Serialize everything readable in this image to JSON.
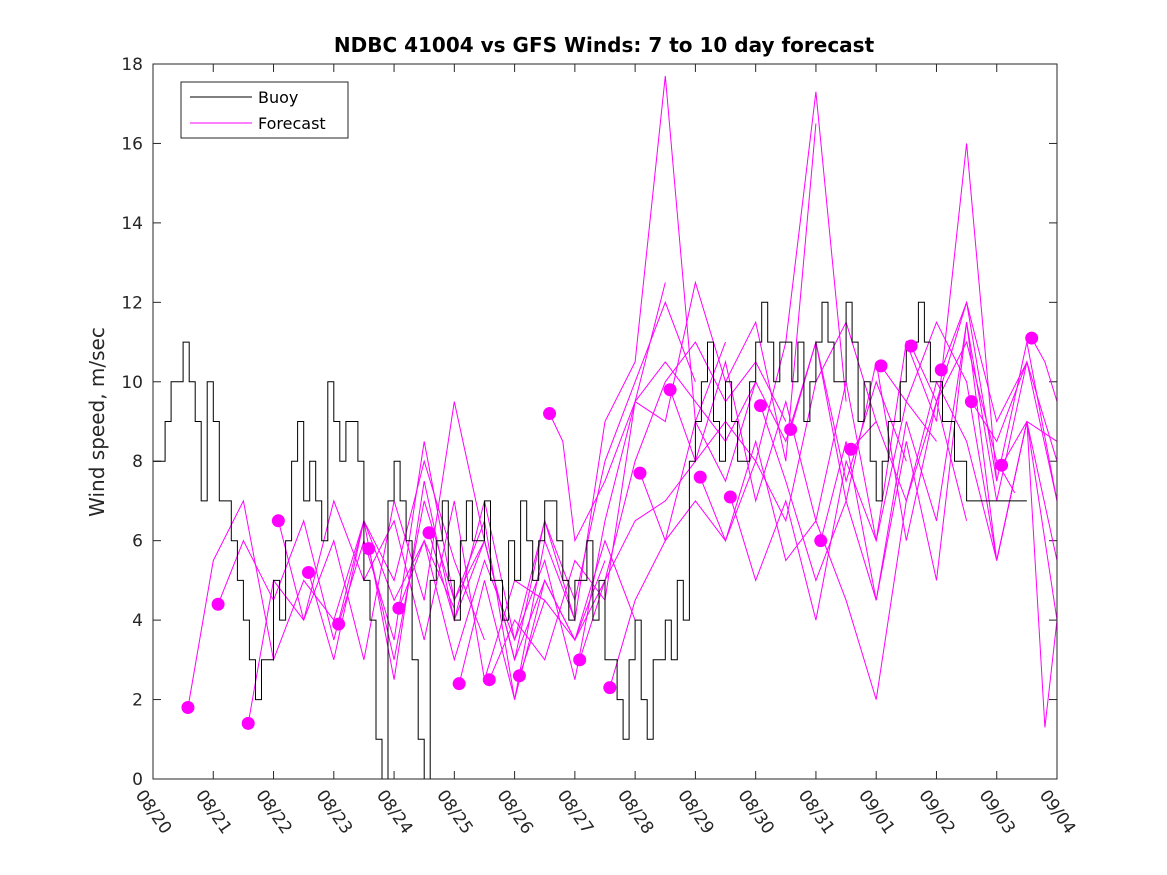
{
  "chart_data": {
    "type": "line",
    "title": "NDBC 41004 vs GFS Winds: 7 to 10 day forecast",
    "xlabel": "",
    "ylabel": "Wind speed, m/sec",
    "xlim": [
      0,
      15
    ],
    "ylim": [
      0,
      18
    ],
    "x_tick_labels": [
      "08/20",
      "08/21",
      "08/22",
      "08/23",
      "08/24",
      "08/25",
      "08/26",
      "08/27",
      "08/28",
      "08/29",
      "08/30",
      "08/31",
      "09/01",
      "09/02",
      "09/03",
      "09/04"
    ],
    "y_ticks": [
      0,
      2,
      4,
      6,
      8,
      10,
      12,
      14,
      16,
      18
    ],
    "legend": [
      "Buoy",
      "Forecast"
    ],
    "legend_position": "top-left",
    "colors": {
      "buoy": "#000000",
      "forecast": "#ff00ff"
    },
    "buoy": {
      "name": "Buoy",
      "x": [
        0,
        0.1,
        0.2,
        0.3,
        0.4,
        0.5,
        0.6,
        0.7,
        0.8,
        0.9,
        1.0,
        1.1,
        1.2,
        1.3,
        1.4,
        1.5,
        1.6,
        1.7,
        1.8,
        1.9,
        2.0,
        2.1,
        2.2,
        2.3,
        2.4,
        2.5,
        2.6,
        2.7,
        2.8,
        2.9,
        3.0,
        3.1,
        3.2,
        3.3,
        3.4,
        3.5,
        3.6,
        3.7,
        3.8,
        3.9,
        4.0,
        4.1,
        4.2,
        4.3,
        4.4,
        4.5,
        4.6,
        4.7,
        4.8,
        4.9,
        5.0,
        5.1,
        5.2,
        5.3,
        5.4,
        5.5,
        5.6,
        5.7,
        5.8,
        5.9,
        6.0,
        6.1,
        6.2,
        6.3,
        6.4,
        6.5,
        6.6,
        6.7,
        6.8,
        6.9,
        7.0,
        7.1,
        7.2,
        7.3,
        7.4,
        7.5,
        7.6,
        7.7,
        7.8,
        7.9,
        8.0,
        8.1,
        8.2,
        8.3,
        8.4,
        8.5,
        8.6,
        8.7,
        8.8,
        8.9,
        9.0,
        9.1,
        9.2,
        9.3,
        9.4,
        9.5,
        9.6,
        9.7,
        9.8,
        9.9,
        10.0,
        10.1,
        10.2,
        10.3,
        10.4,
        10.5,
        10.6,
        10.7,
        10.8,
        10.9,
        11.0,
        11.1,
        11.2,
        11.3,
        11.4,
        11.5,
        11.6,
        11.7,
        11.8,
        11.9,
        12.0,
        12.1,
        12.2,
        12.3,
        12.4,
        12.5,
        12.6,
        12.7,
        12.8,
        12.9,
        13.0,
        13.1,
        13.2,
        13.3,
        13.4,
        13.5,
        13.6,
        13.7,
        13.8,
        13.9,
        14.0,
        14.1,
        14.2,
        14.3,
        14.4,
        14.5
      ],
      "values": [
        7,
        8,
        8,
        9,
        10,
        10,
        11,
        10,
        9,
        7,
        10,
        9,
        7,
        7,
        6,
        5,
        4,
        3,
        2,
        3,
        3,
        5,
        4,
        6,
        8,
        9,
        7,
        8,
        7,
        6,
        10,
        9,
        8,
        9,
        9,
        8,
        5,
        4,
        1,
        0,
        7,
        8,
        7,
        6,
        3,
        1,
        0,
        5,
        6,
        7,
        5,
        4,
        6,
        7,
        6,
        6,
        7,
        5,
        5,
        4,
        6,
        5,
        7,
        6,
        5,
        6,
        7,
        7,
        6,
        5,
        4,
        5,
        5,
        6,
        4,
        5,
        3,
        3,
        2,
        1,
        3,
        4,
        2,
        1,
        3,
        3,
        4,
        3,
        5,
        4,
        8,
        9,
        10,
        11,
        9,
        8,
        10,
        9,
        8,
        8,
        10,
        11,
        12,
        11,
        10,
        11,
        11,
        10,
        11,
        9,
        10,
        11,
        12,
        11,
        10,
        10,
        12,
        11,
        9,
        10,
        8,
        7,
        8,
        9,
        9,
        10,
        11,
        11,
        12,
        11,
        10,
        10,
        9,
        9,
        8,
        8,
        7,
        7,
        7,
        7,
        7,
        7,
        7,
        7,
        7,
        7
      ]
    },
    "forecast_runs": [
      {
        "x": [
          0.58,
          1.0,
          1.5,
          2.0,
          2.5,
          3.0,
          3.5,
          4.0,
          4.5,
          5.0
        ],
        "values": [
          1.8,
          5.5,
          7.0,
          3.0,
          5.0,
          4.0,
          6.5,
          4.5,
          6.0,
          4.3
        ]
      },
      {
        "x": [
          1.08,
          1.5,
          2.0,
          2.5,
          3.0,
          3.5,
          4.0,
          4.5,
          5.0,
          5.5
        ],
        "values": [
          4.4,
          6.0,
          4.5,
          6.5,
          3.5,
          6.5,
          5.0,
          8.0,
          5.5,
          3.5
        ]
      },
      {
        "x": [
          1.58,
          2.0,
          2.5,
          3.0,
          3.5,
          4.0,
          4.5,
          5.0,
          5.5,
          6.0
        ],
        "values": [
          1.4,
          5.0,
          4.0,
          6.0,
          3.0,
          7.0,
          4.5,
          9.5,
          6.0,
          3.0
        ]
      },
      {
        "x": [
          2.08,
          2.5,
          3.0,
          3.5,
          4.0,
          4.5,
          5.0,
          5.5,
          6.0,
          6.5
        ],
        "values": [
          6.5,
          4.0,
          7.0,
          5.0,
          6.5,
          3.5,
          7.0,
          2.5,
          5.0,
          4.5
        ]
      },
      {
        "x": [
          2.58,
          3.0,
          3.5,
          4.0,
          4.5,
          5.0,
          5.5,
          6.0,
          6.5,
          7.0
        ],
        "values": [
          5.2,
          3.0,
          6.5,
          2.5,
          7.5,
          4.0,
          6.0,
          3.0,
          6.5,
          4.0
        ]
      },
      {
        "x": [
          3.08,
          3.5,
          4.0,
          4.5,
          5.0,
          5.5,
          6.0,
          6.5,
          7.0,
          7.5
        ],
        "values": [
          3.9,
          6.0,
          3.5,
          8.5,
          4.5,
          6.5,
          2.0,
          5.0,
          3.5,
          5.5
        ]
      },
      {
        "x": [
          3.58,
          4.0,
          4.5,
          5.0,
          5.5,
          6.0,
          6.5,
          7.0,
          7.5,
          8.0
        ],
        "values": [
          5.8,
          3.0,
          7.0,
          4.5,
          6.0,
          3.0,
          5.0,
          3.5,
          6.0,
          4.0
        ]
      },
      {
        "x": [
          4.08,
          4.5,
          5.0,
          5.5,
          6.0,
          6.5,
          7.0,
          7.5,
          8.0,
          8.5
        ],
        "values": [
          4.3,
          6.0,
          3.0,
          5.5,
          3.5,
          5.5,
          2.5,
          6.5,
          9.5,
          12.5
        ]
      },
      {
        "x": [
          4.58,
          5.0,
          5.5,
          6.0,
          6.5,
          7.0,
          7.5,
          8.0,
          8.5,
          9.0
        ],
        "values": [
          6.2,
          4.0,
          7.0,
          3.5,
          6.5,
          4.5,
          8.0,
          10.0,
          12.0,
          10.0
        ]
      },
      {
        "x": [
          5.08,
          5.5,
          6.0,
          6.5,
          7.0,
          7.5,
          8.0,
          8.5,
          9.0,
          9.5
        ],
        "values": [
          2.4,
          5.0,
          2.0,
          6.0,
          4.0,
          9.0,
          10.5,
          17.7,
          9.0,
          11.0
        ]
      },
      {
        "x": [
          5.58,
          6.0,
          6.5,
          7.0,
          7.5,
          8.0,
          8.5,
          9.0,
          9.5,
          10.0
        ],
        "values": [
          2.5,
          4.0,
          3.0,
          5.5,
          4.5,
          9.5,
          10.5,
          9.5,
          8.5,
          10.0
        ]
      },
      {
        "x": [
          6.08,
          6.5,
          7.0,
          7.5,
          8.0,
          8.5,
          9.0,
          9.5,
          10.0,
          10.5
        ],
        "values": [
          2.6,
          4.5,
          3.5,
          5.0,
          8.0,
          10.0,
          11.0,
          9.5,
          10.5,
          9.0
        ]
      },
      {
        "x": [
          6.58,
          6.8,
          7.0,
          7.5,
          8.0,
          8.5,
          9.0,
          9.5,
          10.0,
          10.5,
          11.0
        ],
        "values": [
          9.2,
          8.5,
          6.0,
          7.5,
          9.5,
          9.0,
          12.5,
          10.0,
          11.5,
          8.0,
          16.5
        ]
      },
      {
        "x": [
          7.08,
          7.5,
          8.0,
          8.5,
          9.0,
          9.5,
          10.0,
          10.5,
          11.0,
          11.5
        ],
        "values": [
          3.0,
          5.0,
          6.5,
          7.0,
          8.0,
          9.0,
          8.0,
          11.0,
          17.3,
          9.5
        ]
      },
      {
        "x": [
          7.58,
          8.0,
          8.5,
          9.0,
          9.5,
          10.0,
          10.5,
          11.0,
          11.5,
          12.0
        ],
        "values": [
          2.3,
          4.5,
          6.0,
          7.0,
          6.0,
          8.0,
          6.5,
          10.0,
          11.5,
          9.0
        ]
      },
      {
        "x": [
          8.08,
          8.5,
          9.0,
          9.5,
          10.0,
          10.5,
          11.0,
          11.5,
          12.0,
          12.5
        ],
        "values": [
          7.7,
          6.0,
          9.0,
          7.5,
          10.0,
          8.5,
          11.0,
          7.5,
          10.0,
          8.0
        ]
      },
      {
        "x": [
          8.58,
          9.0,
          9.5,
          10.0,
          10.5,
          11.0,
          11.5,
          12.0,
          12.5,
          13.0
        ],
        "values": [
          9.8,
          8.0,
          10.5,
          7.0,
          9.5,
          6.5,
          10.0,
          6.0,
          9.5,
          8.5
        ]
      },
      {
        "x": [
          9.08,
          9.5,
          10.0,
          10.5,
          11.0,
          11.5,
          12.0,
          12.5,
          13.0,
          13.5
        ],
        "values": [
          7.6,
          6.0,
          8.5,
          5.5,
          6.5,
          4.5,
          2.0,
          7.0,
          9.5,
          6.5
        ]
      },
      {
        "x": [
          9.58,
          10.0,
          10.5,
          11.0,
          11.5,
          12.0,
          12.5,
          13.0,
          13.5,
          14.0
        ],
        "values": [
          7.1,
          5.0,
          7.0,
          4.0,
          8.0,
          6.0,
          11.0,
          9.0,
          16.0,
          7.5
        ]
      },
      {
        "x": [
          10.08,
          10.5,
          11.0,
          11.5,
          12.0,
          12.5,
          13.0,
          13.5,
          14.0,
          14.5
        ],
        "values": [
          9.4,
          7.5,
          5.0,
          7.0,
          4.5,
          8.5,
          5.0,
          11.5,
          7.0,
          10.5
        ]
      },
      {
        "x": [
          10.58,
          11.0,
          11.5,
          12.0,
          12.5,
          13.0,
          13.5,
          14.0,
          14.5,
          15.0
        ],
        "values": [
          8.8,
          11.0,
          7.0,
          10.5,
          6.0,
          9.5,
          12.0,
          7.5,
          11.0,
          7.0
        ]
      },
      {
        "x": [
          11.08,
          11.5,
          12.0,
          12.5,
          13.0,
          13.5,
          14.0,
          14.5,
          15.0
        ],
        "values": [
          6.0,
          8.5,
          4.5,
          9.0,
          6.5,
          11.5,
          5.5,
          9.0,
          4.0
        ]
      },
      {
        "x": [
          11.58,
          12.0,
          12.5,
          13.0,
          13.5,
          14.0,
          14.5,
          15.0
        ],
        "values": [
          8.3,
          9.0,
          7.0,
          10.0,
          8.5,
          5.5,
          9.0,
          5.5
        ]
      },
      {
        "x": [
          12.08,
          12.5,
          13.0,
          13.5,
          14.0,
          14.5,
          14.8,
          15.0
        ],
        "values": [
          10.4,
          9.5,
          11.5,
          10.0,
          5.5,
          9.0,
          1.3,
          4.0
        ]
      },
      {
        "x": [
          12.58,
          13.0,
          13.5,
          14.0,
          14.3
        ],
        "values": [
          10.9,
          9.5,
          11.0,
          8.0,
          7.2
        ]
      },
      {
        "x": [
          13.08,
          13.5,
          14.0,
          14.5,
          15.0
        ],
        "values": [
          10.3,
          12.0,
          9.0,
          10.5,
          8.0
        ]
      },
      {
        "x": [
          13.58,
          14.0,
          14.5,
          15.0
        ],
        "values": [
          9.5,
          8.5,
          10.5,
          7.0
        ]
      },
      {
        "x": [
          14.08,
          14.5,
          15.0
        ],
        "values": [
          7.9,
          9.0,
          8.5
        ]
      },
      {
        "x": [
          14.58,
          14.8,
          15.0
        ],
        "values": [
          11.1,
          10.5,
          9.5
        ]
      }
    ]
  }
}
